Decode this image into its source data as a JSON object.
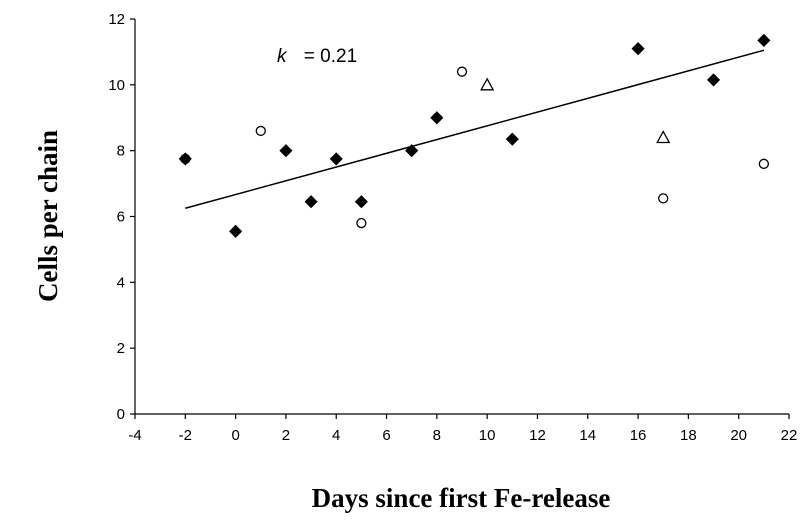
{
  "chart_data": {
    "type": "scatter",
    "title": "",
    "xlabel": "Days since first Fe-release",
    "ylabel": "Cells per chain",
    "xlim": [
      -4,
      22
    ],
    "ylim": [
      0,
      12
    ],
    "x_ticks": [
      -4,
      -2,
      0,
      2,
      4,
      6,
      8,
      10,
      12,
      14,
      16,
      18,
      20,
      22
    ],
    "y_ticks": [
      0,
      2,
      4,
      6,
      8,
      10,
      12
    ],
    "grid": false,
    "legend": "none",
    "annotation": {
      "k_symbol": "k",
      "k_value": "= 0.21"
    },
    "series": [
      {
        "marker": "filled-diamond",
        "color": "#000000",
        "points": [
          {
            "x": -2,
            "y": 7.75
          },
          {
            "x": 0,
            "y": 5.55
          },
          {
            "x": 2,
            "y": 8.0
          },
          {
            "x": 3,
            "y": 6.45
          },
          {
            "x": 4,
            "y": 7.75
          },
          {
            "x": 5,
            "y": 6.45
          },
          {
            "x": 7,
            "y": 8.0
          },
          {
            "x": 8,
            "y": 9.0
          },
          {
            "x": 11,
            "y": 8.35
          },
          {
            "x": 16,
            "y": 11.1
          },
          {
            "x": 19,
            "y": 10.15
          },
          {
            "x": 21,
            "y": 11.35
          }
        ]
      },
      {
        "marker": "open-circle",
        "color": "#000000",
        "points": [
          {
            "x": -2,
            "y": 7.75
          },
          {
            "x": 1,
            "y": 8.6
          },
          {
            "x": 5,
            "y": 5.8
          },
          {
            "x": 9,
            "y": 10.4
          },
          {
            "x": 17,
            "y": 6.55
          },
          {
            "x": 21,
            "y": 7.6
          }
        ]
      },
      {
        "marker": "open-triangle",
        "color": "#000000",
        "points": [
          {
            "x": 10,
            "y": 10.0
          },
          {
            "x": 17,
            "y": 8.4
          }
        ]
      }
    ],
    "trendline": {
      "x": [
        -2,
        21
      ],
      "y": [
        6.25,
        11.05
      ]
    }
  }
}
